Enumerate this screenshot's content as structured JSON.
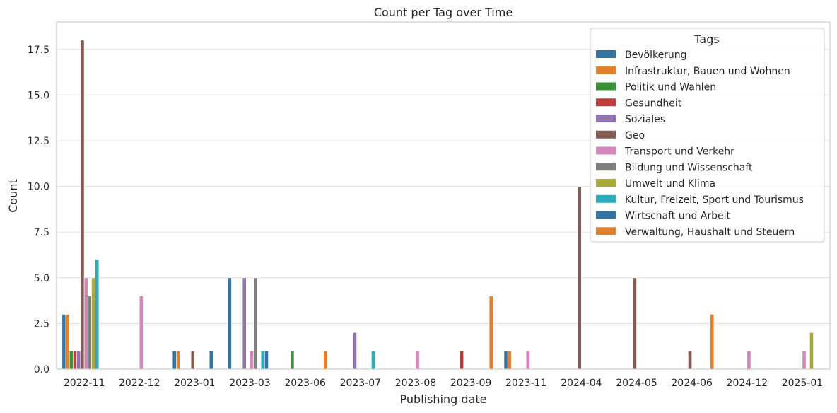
{
  "chart_data": {
    "type": "bar",
    "title": "Count per Tag over Time",
    "xlabel": "Publishing date",
    "ylabel": "Count",
    "ylim": [
      0,
      19
    ],
    "yticks": [
      0.0,
      2.5,
      5.0,
      7.5,
      10.0,
      12.5,
      15.0,
      17.5
    ],
    "ytick_labels": [
      "0.0",
      "2.5",
      "5.0",
      "7.5",
      "10.0",
      "12.5",
      "15.0",
      "17.5"
    ],
    "grid": "horizontal",
    "legend_title": "Tags",
    "legend_position": "top-right",
    "categories": [
      "2022-11",
      "2022-12",
      "2023-01",
      "2023-03",
      "2023-06",
      "2023-07",
      "2023-08",
      "2023-09",
      "2023-11",
      "2024-04",
      "2024-05",
      "2024-06",
      "2024-12",
      "2025-01"
    ],
    "series": [
      {
        "name": "Bevölkerung",
        "color": "#3274a1",
        "values": [
          3,
          0,
          1,
          5,
          0,
          0,
          0,
          0,
          1,
          0,
          0,
          0,
          0,
          0
        ]
      },
      {
        "name": "Infrastruktur, Bauen und Wohnen",
        "color": "#e1812c",
        "values": [
          3,
          0,
          1,
          0,
          0,
          0,
          0,
          0,
          1,
          0,
          0,
          0,
          0,
          0
        ]
      },
      {
        "name": "Politik und Wahlen",
        "color": "#3a923a",
        "values": [
          1,
          0,
          0,
          0,
          1,
          0,
          0,
          0,
          0,
          0,
          0,
          0,
          0,
          0
        ]
      },
      {
        "name": "Gesundheit",
        "color": "#c03d3e",
        "values": [
          1,
          0,
          0,
          0,
          0,
          0,
          0,
          1,
          0,
          0,
          0,
          0,
          0,
          0
        ]
      },
      {
        "name": "Soziales",
        "color": "#9372b2",
        "values": [
          1,
          0,
          0,
          5,
          0,
          2,
          0,
          0,
          0,
          0,
          0,
          0,
          0,
          0
        ]
      },
      {
        "name": "Geo",
        "color": "#845b53",
        "values": [
          18,
          0,
          1,
          0,
          0,
          0,
          0,
          0,
          0,
          10,
          5,
          1,
          0,
          0
        ]
      },
      {
        "name": "Transport und Verkehr",
        "color": "#d684bd",
        "values": [
          5,
          4,
          0,
          1,
          0,
          0,
          1,
          0,
          1,
          0,
          0,
          0,
          1,
          1
        ]
      },
      {
        "name": "Bildung und Wissenschaft",
        "color": "#7f7f7f",
        "values": [
          4,
          0,
          0,
          5,
          0,
          0,
          0,
          0,
          0,
          0,
          0,
          0,
          0,
          0
        ]
      },
      {
        "name": "Umwelt und Klima",
        "color": "#a9aa35",
        "values": [
          5,
          0,
          0,
          0,
          0,
          0,
          0,
          0,
          0,
          0,
          0,
          0,
          0,
          2
        ]
      },
      {
        "name": "Kultur, Freizeit, Sport und Tourismus",
        "color": "#2eabb8",
        "values": [
          6,
          0,
          0,
          1,
          0,
          1,
          0,
          0,
          0,
          0,
          0,
          0,
          0,
          0
        ]
      },
      {
        "name": "Wirtschaft und Arbeit",
        "color": "#3274a1",
        "values": [
          0,
          0,
          1,
          1,
          0,
          0,
          0,
          0,
          0,
          0,
          0,
          0,
          0,
          0
        ]
      },
      {
        "name": "Verwaltung, Haushalt und Steuern",
        "color": "#e1812c",
        "values": [
          0,
          0,
          0,
          0,
          1,
          0,
          0,
          4,
          0,
          0,
          0,
          3,
          0,
          0
        ]
      }
    ]
  }
}
